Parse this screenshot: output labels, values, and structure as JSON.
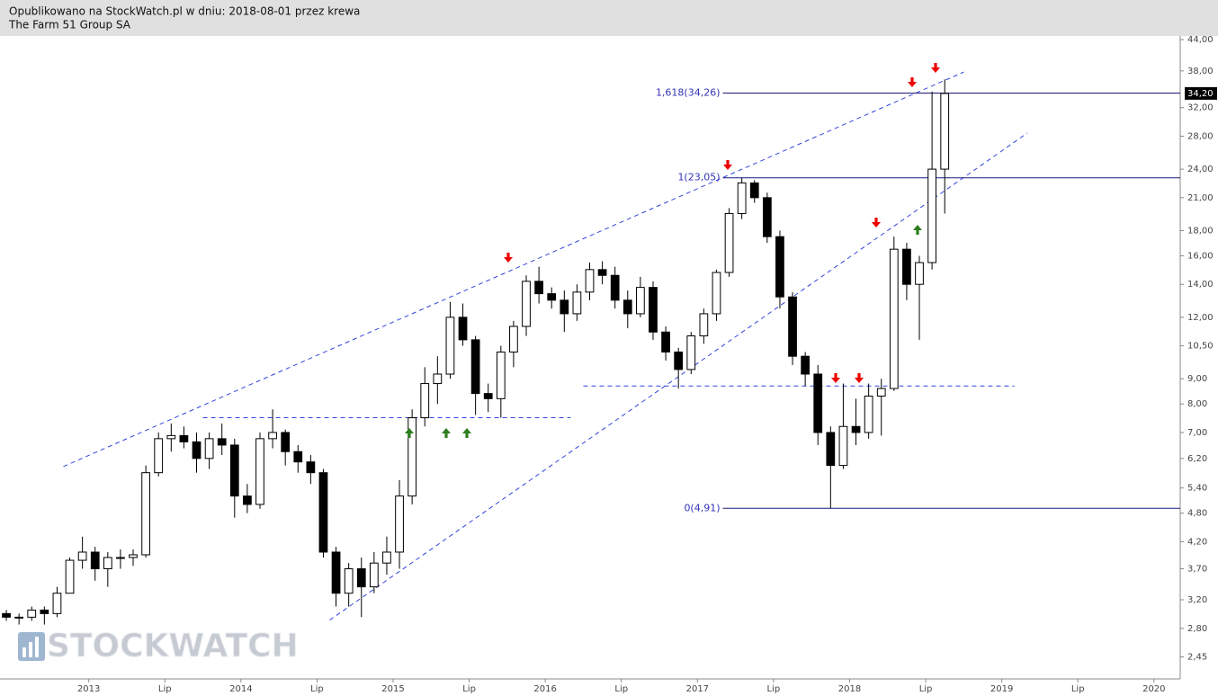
{
  "header": {
    "published": "Opublikowano na StockWatch.pl w dniu: 2018-08-01 przez krewa",
    "instrument": "The Farm 51 Group SA"
  },
  "watermark": "STOCKWATCH",
  "chart_data": {
    "type": "candlestick",
    "log_scale": true,
    "ylim": [
      2.21,
      44.75
    ],
    "xlim": [
      "2012-06",
      "2020-03"
    ],
    "yticks": [
      {
        "value": 44,
        "label": "44,00"
      },
      {
        "value": 38,
        "label": "38,00"
      },
      {
        "value": 32,
        "label": "32,00"
      },
      {
        "value": 28,
        "label": "28,00"
      },
      {
        "value": 24,
        "label": "24,00"
      },
      {
        "value": 21,
        "label": "21,00"
      },
      {
        "value": 18,
        "label": "18,00"
      },
      {
        "value": 16,
        "label": "16,00"
      },
      {
        "value": 14,
        "label": "14,00"
      },
      {
        "value": 12,
        "label": "12,00"
      },
      {
        "value": 10.5,
        "label": "10,50"
      },
      {
        "value": 9,
        "label": "9,00"
      },
      {
        "value": 8,
        "label": "8,00"
      },
      {
        "value": 7,
        "label": "7,00"
      },
      {
        "value": 6.2,
        "label": "6,20"
      },
      {
        "value": 5.4,
        "label": "5,40"
      },
      {
        "value": 4.8,
        "label": "4,80"
      },
      {
        "value": 4.2,
        "label": "4,20"
      },
      {
        "value": 3.7,
        "label": "3,70"
      },
      {
        "value": 3.2,
        "label": "3,20"
      },
      {
        "value": 2.8,
        "label": "2,80"
      },
      {
        "value": 2.45,
        "label": "2,45"
      }
    ],
    "xticks": [
      {
        "value": "2013-01",
        "label": "2013"
      },
      {
        "value": "2013-07",
        "label": "Lip"
      },
      {
        "value": "2014-01",
        "label": "2014"
      },
      {
        "value": "2014-07",
        "label": "Lip"
      },
      {
        "value": "2015-01",
        "label": "2015"
      },
      {
        "value": "2015-07",
        "label": "Lip"
      },
      {
        "value": "2016-01",
        "label": "2016"
      },
      {
        "value": "2016-07",
        "label": "Lip"
      },
      {
        "value": "2017-01",
        "label": "2017"
      },
      {
        "value": "2017-07",
        "label": "Lip"
      },
      {
        "value": "2018-01",
        "label": "2018"
      },
      {
        "value": "2018-07",
        "label": "Lip"
      },
      {
        "value": "2019-01",
        "label": "2019"
      },
      {
        "value": "2019-07",
        "label": "Lip"
      },
      {
        "value": "2020-01",
        "label": "2020"
      }
    ],
    "last_price": {
      "value": 34.2,
      "label": "34,20"
    },
    "x": [
      "2012-06",
      "2012-07",
      "2012-08",
      "2012-09",
      "2012-10",
      "2012-11",
      "2012-12",
      "2013-01",
      "2013-02",
      "2013-03",
      "2013-04",
      "2013-05",
      "2013-06",
      "2013-07",
      "2013-08",
      "2013-09",
      "2013-10",
      "2013-11",
      "2013-12",
      "2014-01",
      "2014-02",
      "2014-03",
      "2014-04",
      "2014-05",
      "2014-06",
      "2014-07",
      "2014-08",
      "2014-09",
      "2014-10",
      "2014-11",
      "2014-12",
      "2015-01",
      "2015-02",
      "2015-03",
      "2015-04",
      "2015-05",
      "2015-06",
      "2015-07",
      "2015-08",
      "2015-09",
      "2015-10",
      "2015-11",
      "2015-12",
      "2016-01",
      "2016-02",
      "2016-03",
      "2016-04",
      "2016-05",
      "2016-06",
      "2016-07",
      "2016-08",
      "2016-09",
      "2016-10",
      "2016-11",
      "2016-12",
      "2017-01",
      "2017-02",
      "2017-03",
      "2017-04",
      "2017-05",
      "2017-06",
      "2017-07",
      "2017-08",
      "2017-09",
      "2017-10",
      "2017-11",
      "2017-12",
      "2018-01",
      "2018-02",
      "2018-03",
      "2018-04",
      "2018-05",
      "2018-06",
      "2018-07",
      "2018-08"
    ],
    "open": [
      3.0,
      2.95,
      2.95,
      3.05,
      3.0,
      3.3,
      3.85,
      4.0,
      3.7,
      3.9,
      3.9,
      3.95,
      5.8,
      6.8,
      6.9,
      6.7,
      6.2,
      6.8,
      6.6,
      5.2,
      5.0,
      6.8,
      7.0,
      6.4,
      6.1,
      5.8,
      4.0,
      3.3,
      3.7,
      3.4,
      3.8,
      4.0,
      5.2,
      7.5,
      8.8,
      9.2,
      12.0,
      10.8,
      8.4,
      8.2,
      10.2,
      11.5,
      14.2,
      13.4,
      13.0,
      12.2,
      13.5,
      15.0,
      14.6,
      13.0,
      12.2,
      13.8,
      11.2,
      10.2,
      9.4,
      11.0,
      12.2,
      14.8,
      19.5,
      22.5,
      21.0,
      17.5,
      13.2,
      10.0,
      9.2,
      7.0,
      6.0,
      7.2,
      7.0,
      8.3,
      8.6,
      16.5,
      14.0,
      15.5,
      24.0
    ],
    "high": [
      3.05,
      3.0,
      3.1,
      3.1,
      3.4,
      3.9,
      4.3,
      4.1,
      4.0,
      4.05,
      4.05,
      6.0,
      7.0,
      7.3,
      7.2,
      7.0,
      7.0,
      7.3,
      6.8,
      5.5,
      7.0,
      7.8,
      7.1,
      6.6,
      6.3,
      5.9,
      4.1,
      3.8,
      3.9,
      4.0,
      4.3,
      5.6,
      7.8,
      9.5,
      10.0,
      12.9,
      12.8,
      11.0,
      8.8,
      10.5,
      11.8,
      14.6,
      15.2,
      13.8,
      13.6,
      14.0,
      15.5,
      15.6,
      15.2,
      13.6,
      14.5,
      14.2,
      11.5,
      10.4,
      11.2,
      12.5,
      15.0,
      20.0,
      23.05,
      22.8,
      21.5,
      18.0,
      13.5,
      10.2,
      9.6,
      7.2,
      8.8,
      8.2,
      8.8,
      9.0,
      17.5,
      17.0,
      16.0,
      34.5,
      36.5
    ],
    "low": [
      2.9,
      2.85,
      2.9,
      2.85,
      2.95,
      3.3,
      3.7,
      3.5,
      3.4,
      3.7,
      3.75,
      3.9,
      5.7,
      6.4,
      6.5,
      5.8,
      5.9,
      6.3,
      4.7,
      4.8,
      4.9,
      6.5,
      6.0,
      5.8,
      5.5,
      3.9,
      3.1,
      3.1,
      2.95,
      3.3,
      3.6,
      3.7,
      5.0,
      7.2,
      8.0,
      9.0,
      10.5,
      7.6,
      7.7,
      7.5,
      9.5,
      11.0,
      12.8,
      12.5,
      11.2,
      11.8,
      13.0,
      14.0,
      12.5,
      11.4,
      12.0,
      10.8,
      9.8,
      8.6,
      9.2,
      10.6,
      11.8,
      14.5,
      19.0,
      20.5,
      17.0,
      12.5,
      9.6,
      8.7,
      6.6,
      4.91,
      5.9,
      6.6,
      6.8,
      6.9,
      8.5,
      13.0,
      10.8,
      15.0,
      19.5
    ],
    "close": [
      2.95,
      2.95,
      3.05,
      3.0,
      3.3,
      3.85,
      4.0,
      3.7,
      3.9,
      3.9,
      3.95,
      5.8,
      6.8,
      6.9,
      6.7,
      6.2,
      6.8,
      6.6,
      5.2,
      5.0,
      6.8,
      7.0,
      6.4,
      6.1,
      5.8,
      4.0,
      3.3,
      3.7,
      3.4,
      3.8,
      4.0,
      5.2,
      7.5,
      8.8,
      9.2,
      12.0,
      10.8,
      8.4,
      8.2,
      10.2,
      11.5,
      14.2,
      13.4,
      13.0,
      12.2,
      13.5,
      15.0,
      14.6,
      13.0,
      12.2,
      13.8,
      11.2,
      10.2,
      9.4,
      11.0,
      12.2,
      14.8,
      19.5,
      22.5,
      21.0,
      17.5,
      13.2,
      10.0,
      9.2,
      7.0,
      6.0,
      7.2,
      7.0,
      8.3,
      8.6,
      16.5,
      14.0,
      15.5,
      24.0,
      34.2
    ],
    "fib_levels": [
      {
        "value": 34.26,
        "label": "1,618(34,26)",
        "from": "2017-03"
      },
      {
        "value": 23.05,
        "label": "1(23,05)",
        "from": "2017-03"
      },
      {
        "value": 4.91,
        "label": "0(4,91)",
        "from": "2017-03"
      }
    ],
    "support_lines": [
      {
        "value": 7.5,
        "from": "2013-10",
        "to": "2016-03"
      },
      {
        "value": 8.7,
        "from": "2016-04",
        "to": "2019-02"
      }
    ],
    "trendlines": [
      {
        "from": [
          "2012-11",
          5.97
        ],
        "to": [
          "2018-10",
          37.8
        ]
      },
      {
        "from": [
          "2014-08",
          2.91
        ],
        "to": [
          "2019-03",
          28.4
        ]
      }
    ]
  }
}
